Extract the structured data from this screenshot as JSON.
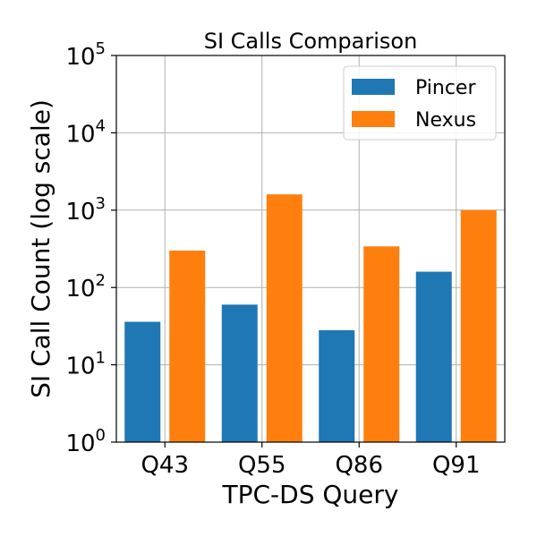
{
  "chart_data": {
    "type": "bar",
    "title": "SI Calls Comparison",
    "xlabel": "TPC-DS Query",
    "ylabel": "SI Call Count (log scale)",
    "yscale": "log",
    "ylim": [
      1,
      100000
    ],
    "grid": true,
    "legend_position": "top-right",
    "categories": [
      "Q43",
      "Q55",
      "Q86",
      "Q91"
    ],
    "y_ticks": [
      {
        "value": 1,
        "base": "10",
        "exp": "0"
      },
      {
        "value": 10,
        "base": "10",
        "exp": "1"
      },
      {
        "value": 100,
        "base": "10",
        "exp": "2"
      },
      {
        "value": 1000,
        "base": "10",
        "exp": "3"
      },
      {
        "value": 10000,
        "base": "10",
        "exp": "4"
      },
      {
        "value": 100000,
        "base": "10",
        "exp": "5"
      }
    ],
    "series": [
      {
        "name": "Pincer",
        "color": "#1f77b4",
        "values": [
          36,
          60,
          28,
          160
        ]
      },
      {
        "name": "Nexus",
        "color": "#ff7f0e",
        "values": [
          300,
          1600,
          340,
          1000
        ]
      }
    ]
  }
}
